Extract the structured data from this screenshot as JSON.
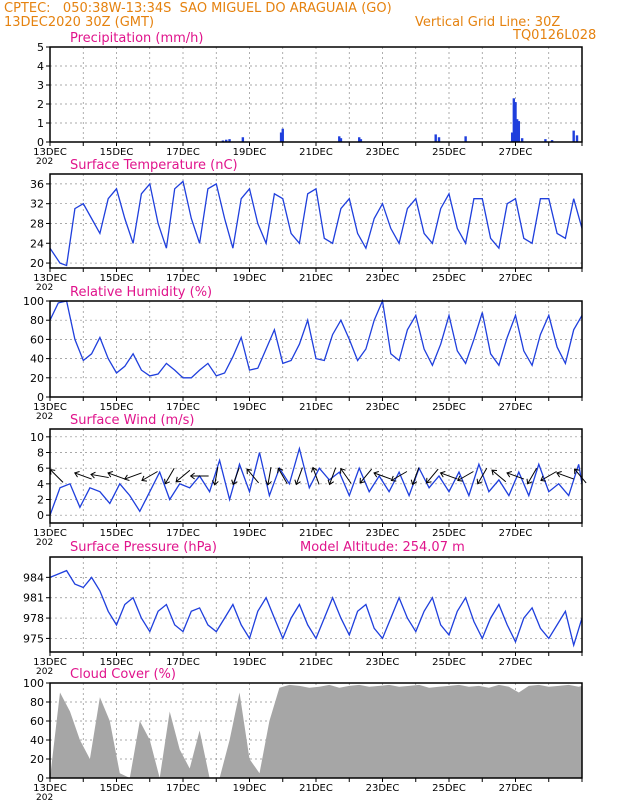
{
  "header": {
    "line1_left": "CPTEC:   050:38W-13:34S  SAO MIGUEL DO ARAGUAIA (GO)",
    "line2_left": "13DEC2020 30Z (GMT)",
    "line2_right": "Vertical Grid Line: 30Z",
    "line3_right": "TQ0126L028"
  },
  "colors": {
    "header": "#e5820f",
    "panel_title": "#e0148c",
    "series": "#1f3fdd",
    "cloud": "#a6a6a6",
    "arrows": "#000000",
    "grid": "#8c8c8c"
  },
  "chart_data": [
    {
      "id": "precip",
      "type": "bar",
      "title": "Precipitation (mm/h)",
      "ylim": [
        0,
        5
      ],
      "yticks": [
        0,
        1,
        2,
        3,
        4,
        5
      ],
      "color": "#1f3fdd",
      "x": [
        5.2,
        5.3,
        5.4,
        5.8,
        6.95,
        7.0,
        8.7,
        8.75,
        9.3,
        9.35,
        11.6,
        11.7,
        12.5,
        13.9,
        13.95,
        14.0,
        14.05,
        14.1,
        14.2,
        14.9,
        15.1,
        15.75,
        15.85
      ],
      "values": [
        0.08,
        0.12,
        0.15,
        0.25,
        0.5,
        0.7,
        0.3,
        0.2,
        0.25,
        0.15,
        0.4,
        0.25,
        0.3,
        0.5,
        2.3,
        2.1,
        1.2,
        1.1,
        0.2,
        0.15,
        0.1,
        0.6,
        0.35
      ]
    },
    {
      "id": "temp",
      "type": "line",
      "title": "Surface Temperature (nC)",
      "ylim": [
        19,
        38
      ],
      "yticks": [
        20,
        24,
        28,
        32,
        36
      ],
      "color": "#1f3fdd",
      "x": [
        0,
        0.3,
        0.5,
        0.75,
        1.0,
        1.25,
        1.5,
        1.75,
        2.0,
        2.25,
        2.5,
        2.75,
        3.0,
        3.25,
        3.5,
        3.75,
        4.0,
        4.25,
        4.5,
        4.75,
        5.0,
        5.25,
        5.5,
        5.75,
        6.0,
        6.25,
        6.5,
        6.75,
        7.0,
        7.25,
        7.5,
        7.75,
        8.0,
        8.25,
        8.5,
        8.75,
        9.0,
        9.25,
        9.5,
        9.75,
        10.0,
        10.25,
        10.5,
        10.75,
        11.0,
        11.25,
        11.5,
        11.75,
        12.0,
        12.25,
        12.5,
        12.75,
        13.0,
        13.25,
        13.5,
        13.75,
        14.0,
        14.25,
        14.5,
        14.75,
        15.0,
        15.25,
        15.5,
        15.75,
        16.0
      ],
      "values": [
        23,
        20,
        19.5,
        31,
        32,
        29,
        26,
        33,
        35,
        29,
        24,
        34,
        36,
        28,
        23,
        35,
        36.5,
        29,
        24,
        35,
        36,
        29,
        23,
        33,
        35,
        28,
        24,
        34,
        33,
        26,
        24,
        34,
        35,
        25,
        24,
        31,
        33,
        26,
        23,
        29,
        32,
        27,
        24,
        31,
        33,
        26,
        24,
        31,
        34,
        27,
        24,
        33,
        33,
        25,
        23,
        32,
        33,
        25,
        24,
        33,
        33,
        26,
        25,
        33,
        27
      ]
    },
    {
      "id": "rh",
      "type": "line",
      "title": "Relative Humidity (%)",
      "ylim": [
        0,
        100
      ],
      "yticks": [
        0,
        20,
        40,
        60,
        80,
        100
      ],
      "color": "#1f3fdd",
      "x": [
        0,
        0.25,
        0.5,
        0.75,
        1.0,
        1.25,
        1.5,
        1.75,
        2.0,
        2.25,
        2.5,
        2.75,
        3.0,
        3.25,
        3.5,
        3.75,
        4.0,
        4.25,
        4.5,
        4.75,
        5.0,
        5.25,
        5.5,
        5.75,
        6.0,
        6.25,
        6.5,
        6.75,
        7.0,
        7.25,
        7.5,
        7.75,
        8.0,
        8.25,
        8.5,
        8.75,
        9.0,
        9.25,
        9.5,
        9.75,
        10.0,
        10.25,
        10.5,
        10.75,
        11.0,
        11.25,
        11.5,
        11.75,
        12.0,
        12.25,
        12.5,
        12.75,
        13.0,
        13.25,
        13.5,
        13.75,
        14.0,
        14.25,
        14.5,
        14.75,
        15.0,
        15.25,
        15.5,
        15.75,
        16.0
      ],
      "values": [
        80,
        98,
        100,
        60,
        38,
        45,
        62,
        40,
        25,
        32,
        45,
        28,
        22,
        24,
        35,
        28,
        20,
        20,
        28,
        35,
        22,
        25,
        42,
        62,
        28,
        30,
        50,
        70,
        35,
        38,
        55,
        80,
        40,
        38,
        65,
        80,
        60,
        38,
        50,
        80,
        100,
        45,
        38,
        70,
        85,
        50,
        33,
        55,
        85,
        48,
        35,
        60,
        88,
        45,
        33,
        62,
        85,
        48,
        33,
        65,
        85,
        52,
        35,
        70,
        85
      ]
    },
    {
      "id": "wind",
      "type": "line",
      "title": "Surface Wind (m/s)",
      "ylim": [
        -1,
        11
      ],
      "yticks": [
        0,
        2,
        4,
        6,
        8,
        10
      ],
      "color": "#1f3fdd",
      "x": [
        0,
        0.3,
        0.6,
        0.9,
        1.2,
        1.5,
        1.8,
        2.1,
        2.4,
        2.7,
        3.0,
        3.3,
        3.6,
        3.9,
        4.2,
        4.5,
        4.8,
        5.1,
        5.4,
        5.7,
        6.0,
        6.3,
        6.6,
        6.9,
        7.2,
        7.5,
        7.8,
        8.1,
        8.4,
        8.7,
        9.0,
        9.3,
        9.6,
        9.9,
        10.2,
        10.5,
        10.8,
        11.1,
        11.4,
        11.7,
        12.0,
        12.3,
        12.6,
        12.9,
        13.2,
        13.5,
        13.8,
        14.1,
        14.4,
        14.7,
        15.0,
        15.3,
        15.6,
        15.9,
        16.0
      ],
      "values": [
        0,
        3.5,
        4.0,
        1.0,
        3.5,
        3.0,
        1.5,
        4.0,
        2.5,
        0.5,
        3.0,
        5.5,
        2.0,
        4.0,
        3.5,
        5.0,
        3.0,
        7.0,
        2.0,
        6.5,
        3.0,
        8.0,
        2.5,
        6.0,
        4.0,
        8.5,
        3.5,
        6.0,
        4.5,
        5.5,
        2.5,
        6.0,
        3.0,
        5.0,
        3.0,
        5.5,
        2.5,
        6.0,
        3.5,
        5.0,
        3.0,
        5.5,
        2.5,
        6.5,
        3.0,
        4.5,
        2.5,
        5.5,
        2.5,
        6.5,
        3.0,
        4.0,
        2.5,
        6.5,
        4.0
      ],
      "arrow_labels": [
        {
          "x": 0.2,
          "angle": 225
        },
        {
          "x": 1.0,
          "angle": 200
        },
        {
          "x": 1.5,
          "angle": 190
        },
        {
          "x": 2.0,
          "angle": 200
        },
        {
          "x": 2.5,
          "angle": 160
        },
        {
          "x": 3.0,
          "angle": 150
        },
        {
          "x": 3.6,
          "angle": 120
        },
        {
          "x": 4.0,
          "angle": 140
        },
        {
          "x": 4.5,
          "angle": 180
        },
        {
          "x": 5.0,
          "angle": 100
        },
        {
          "x": 5.6,
          "angle": 110
        },
        {
          "x": 6.1,
          "angle": 230
        },
        {
          "x": 6.6,
          "angle": 100
        },
        {
          "x": 7.0,
          "angle": 240
        },
        {
          "x": 7.5,
          "angle": 110
        },
        {
          "x": 8.0,
          "angle": 250
        },
        {
          "x": 8.5,
          "angle": 110
        },
        {
          "x": 8.9,
          "angle": 235
        },
        {
          "x": 9.5,
          "angle": 130
        },
        {
          "x": 10.0,
          "angle": 200
        },
        {
          "x": 10.5,
          "angle": 150
        },
        {
          "x": 11.0,
          "angle": 110
        },
        {
          "x": 11.5,
          "angle": 130
        },
        {
          "x": 12.0,
          "angle": 200
        },
        {
          "x": 12.5,
          "angle": 150
        },
        {
          "x": 13.0,
          "angle": 120
        },
        {
          "x": 13.5,
          "angle": 220
        },
        {
          "x": 14.0,
          "angle": 200
        },
        {
          "x": 14.5,
          "angle": 120
        },
        {
          "x": 15.0,
          "angle": 150
        },
        {
          "x": 15.5,
          "angle": 200
        },
        {
          "x": 15.95,
          "angle": 230
        }
      ]
    },
    {
      "id": "pres",
      "type": "line",
      "title": "Surface Pressure (hPa)",
      "subtitle": "Model Altitude: 254.07 m",
      "ylim": [
        973,
        987
      ],
      "yticks": [
        975,
        978,
        981,
        984
      ],
      "color": "#1f3fdd",
      "x": [
        0,
        0.25,
        0.5,
        0.75,
        1.0,
        1.25,
        1.5,
        1.75,
        2.0,
        2.25,
        2.5,
        2.75,
        3.0,
        3.25,
        3.5,
        3.75,
        4.0,
        4.25,
        4.5,
        4.75,
        5.0,
        5.25,
        5.5,
        5.75,
        6.0,
        6.25,
        6.5,
        6.75,
        7.0,
        7.25,
        7.5,
        7.75,
        8.0,
        8.25,
        8.5,
        8.75,
        9.0,
        9.25,
        9.5,
        9.75,
        10.0,
        10.25,
        10.5,
        10.75,
        11.0,
        11.25,
        11.5,
        11.75,
        12.0,
        12.25,
        12.5,
        12.75,
        13.0,
        13.25,
        13.5,
        13.75,
        14.0,
        14.25,
        14.5,
        14.75,
        15.0,
        15.25,
        15.5,
        15.75,
        16.0
      ],
      "values": [
        984,
        984.5,
        985,
        983,
        982.5,
        984,
        982,
        979,
        977,
        980,
        981,
        978,
        976,
        979,
        980,
        977,
        976,
        979,
        979.5,
        977,
        976,
        978,
        980,
        977,
        975,
        979,
        981,
        978,
        975,
        978,
        980,
        977,
        975,
        978,
        981,
        978,
        975.5,
        979,
        980,
        976.5,
        975,
        978,
        981,
        978,
        976,
        979,
        981,
        977,
        975.5,
        979,
        981,
        977.5,
        975,
        978,
        980,
        977,
        974.5,
        978,
        979.5,
        976.5,
        975,
        977,
        979,
        974,
        978
      ]
    },
    {
      "id": "cloud",
      "type": "area",
      "title": "Cloud Cover (%)",
      "ylim": [
        0,
        100
      ],
      "yticks": [
        0,
        20,
        40,
        60,
        80,
        100
      ],
      "color": "#a6a6a6",
      "x": [
        0,
        0.3,
        0.6,
        0.9,
        1.2,
        1.5,
        1.8,
        2.1,
        2.4,
        2.7,
        3.0,
        3.3,
        3.6,
        3.9,
        4.2,
        4.5,
        4.8,
        5.1,
        5.4,
        5.7,
        6.0,
        6.3,
        6.6,
        6.9,
        7.2,
        7.5,
        7.8,
        8.1,
        8.4,
        8.7,
        9.0,
        9.3,
        9.6,
        9.9,
        10.2,
        10.5,
        10.8,
        11.1,
        11.4,
        11.7,
        12.0,
        12.3,
        12.6,
        12.9,
        13.2,
        13.5,
        13.8,
        14.1,
        14.4,
        14.7,
        15.0,
        15.3,
        15.6,
        15.9,
        16.0
      ],
      "values": [
        0,
        90,
        70,
        40,
        20,
        85,
        60,
        5,
        0,
        60,
        40,
        0,
        70,
        30,
        10,
        50,
        0,
        0,
        40,
        90,
        20,
        5,
        60,
        95,
        98,
        97,
        95,
        96,
        98,
        95,
        97,
        98,
        96,
        97,
        98,
        96,
        97,
        98,
        95,
        96,
        97,
        98,
        96,
        97,
        95,
        98,
        96,
        90,
        97,
        98,
        96,
        97,
        98,
        96,
        97
      ]
    }
  ],
  "x_axis": {
    "range": [
      0,
      16
    ],
    "labels": [
      "13DEC",
      "15DEC",
      "17DEC",
      "19DEC",
      "21DEC",
      "23DEC",
      "25DEC",
      "27DEC"
    ],
    "label_positions": [
      0,
      2,
      4,
      6,
      8,
      10,
      12,
      14
    ],
    "year_fragment": "202"
  }
}
